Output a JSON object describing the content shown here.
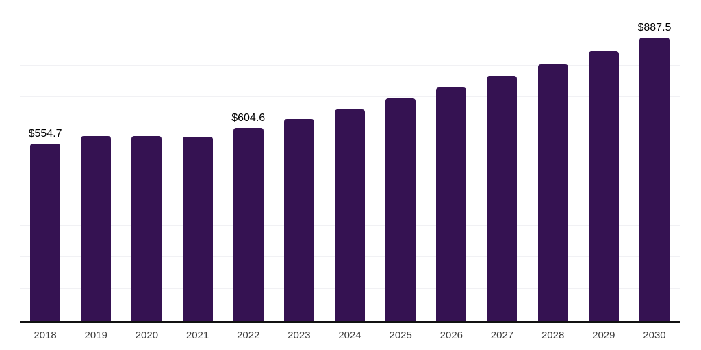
{
  "chart_data": {
    "type": "bar",
    "title": "",
    "xlabel": "",
    "ylabel": "",
    "categories": [
      "2018",
      "2019",
      "2020",
      "2021",
      "2022",
      "2023",
      "2024",
      "2025",
      "2026",
      "2027",
      "2028",
      "2029",
      "2030"
    ],
    "values": [
      554.7,
      580.0,
      579.0,
      576.5,
      604.6,
      633.0,
      663.0,
      696.0,
      730.0,
      768.0,
      804.0,
      845.0,
      887.5
    ],
    "labeled_points": [
      {
        "category": "2018",
        "label": "$554.7"
      },
      {
        "category": "2022",
        "label": "$604.6"
      },
      {
        "category": "2030",
        "label": "$887.5"
      }
    ],
    "ylim": [
      0,
      1000
    ],
    "grid_step": 100,
    "grid": true,
    "legend_position": "none",
    "colors": {
      "bar": "#351252",
      "gridline": "#f1f1f4",
      "axis_line": "#111111",
      "tick_label": "#3d3d3d",
      "data_label": "#000000",
      "background": "#ffffff"
    }
  }
}
